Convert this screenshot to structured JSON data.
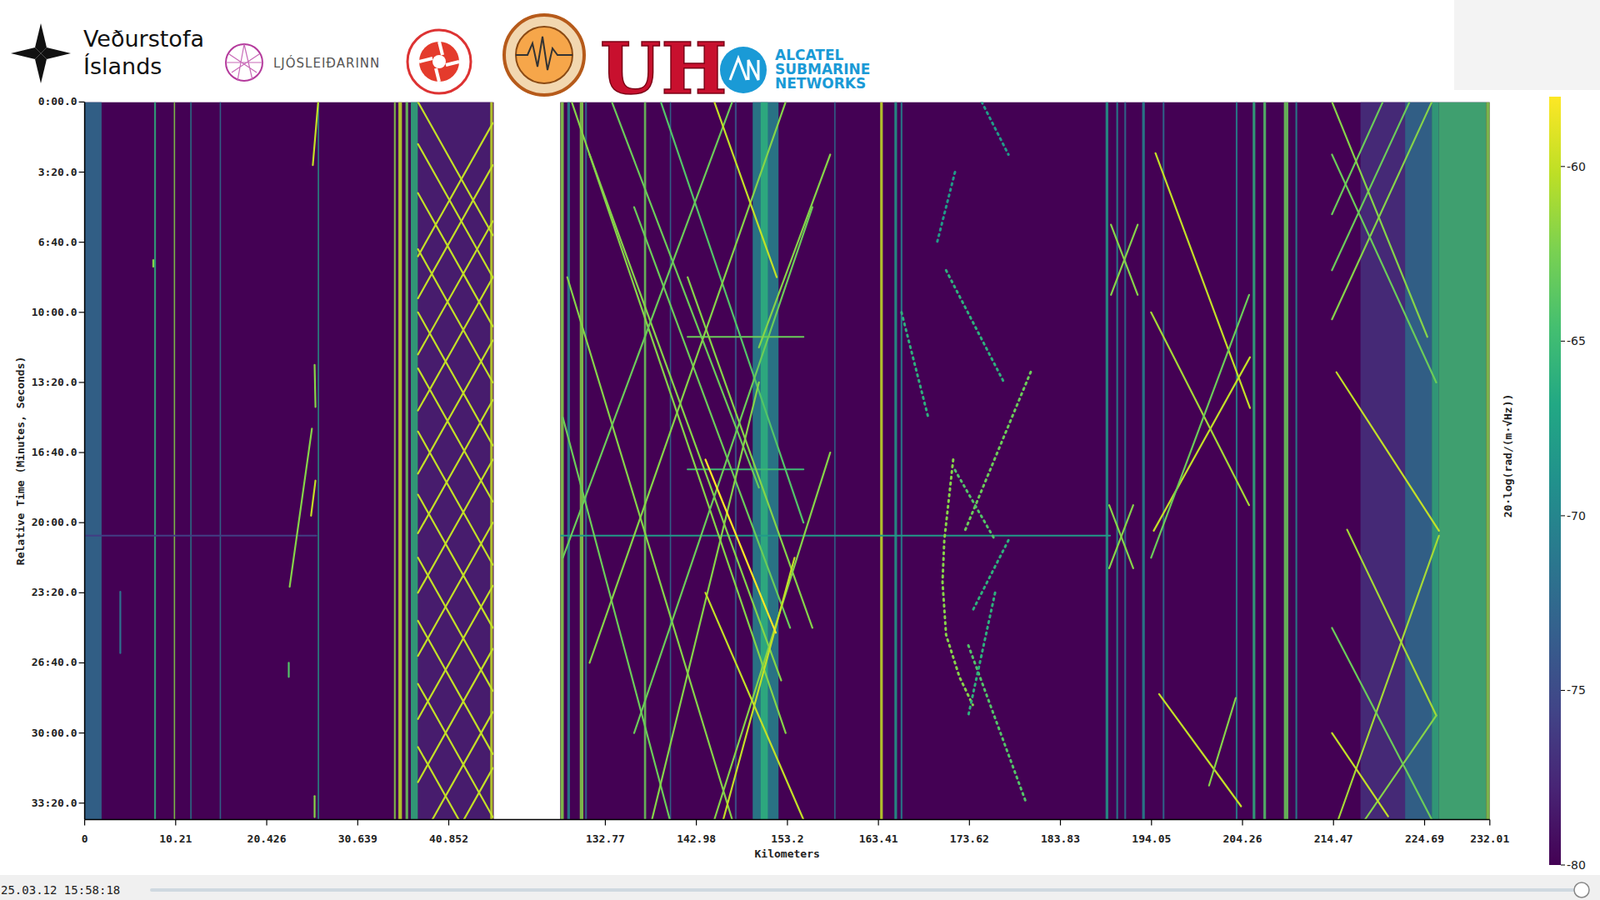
{
  "header": {
    "weather_office": [
      "Veðurstofa",
      "Íslands"
    ],
    "ljosleidarinn": "LJÓSLEIÐARINN",
    "uh": "UH",
    "asn": [
      "ALCATEL",
      "SUBMARINE",
      "NETWORKS"
    ]
  },
  "footer": {
    "timestamp": "25.03.12 15:58:18"
  },
  "chart_data": {
    "type": "waterfall",
    "x_label": "Kilometers",
    "y_label": "Relative Time (Minutes, Seconds)",
    "xlim": [
      0,
      232.01
    ],
    "x_break": [
      45.9,
      127.7
    ],
    "xticks": [
      0,
      10.21,
      20.426,
      30.639,
      40.852,
      132.77,
      142.98,
      153.2,
      163.41,
      173.62,
      183.83,
      194.05,
      204.26,
      214.47,
      224.69,
      232.01
    ],
    "ylim": [
      0,
      2047
    ],
    "yticks": [
      {
        "value": 0,
        "label": "0:00.0"
      },
      {
        "value": 200,
        "label": "3:20.0"
      },
      {
        "value": 400,
        "label": "6:40.0"
      },
      {
        "value": 600,
        "label": "10:00.0"
      },
      {
        "value": 800,
        "label": "13:20.0"
      },
      {
        "value": 1000,
        "label": "16:40.0"
      },
      {
        "value": 1200,
        "label": "20:00.0"
      },
      {
        "value": 1400,
        "label": "23:20.0"
      },
      {
        "value": 1600,
        "label": "26:40.0"
      },
      {
        "value": 1800,
        "label": "30:00.0"
      },
      {
        "value": 2000,
        "label": "33:20.0"
      }
    ],
    "colorbar": {
      "label": "20·log(rad/(m·√Hz))",
      "range": [
        -80,
        -58
      ],
      "ticks": [
        -60,
        -65,
        -70,
        -75,
        -80
      ]
    },
    "bands": [
      {
        "x0": 0,
        "x1": 1.9,
        "level": -72
      },
      {
        "x0": 7.8,
        "x1": 8.0,
        "level": -66
      },
      {
        "x0": 10.0,
        "x1": 10.15,
        "level": -62
      },
      {
        "x0": 11.85,
        "x1": 11.97,
        "level": -70
      },
      {
        "x0": 15.15,
        "x1": 15.3,
        "level": -72
      },
      {
        "x0": 26.15,
        "x1": 26.3,
        "level": -68
      },
      {
        "x0": 34.7,
        "x1": 34.9,
        "level": -62
      },
      {
        "x0": 35.2,
        "x1": 35.6,
        "level": -60
      },
      {
        "x0": 36.0,
        "x1": 36.3,
        "level": -63
      },
      {
        "x0": 36.6,
        "x1": 37.4,
        "level": -66
      },
      {
        "x0": 37.4,
        "x1": 45.5,
        "level": -78
      },
      {
        "x0": 45.5,
        "x1": 45.8,
        "level": -60
      },
      {
        "x0": 127.73,
        "x1": 128.1,
        "level": -62
      },
      {
        "x0": 128.5,
        "x1": 128.8,
        "level": -70
      },
      {
        "x0": 129.9,
        "x1": 130.3,
        "level": -62
      },
      {
        "x0": 130.5,
        "x1": 130.7,
        "level": -72
      },
      {
        "x0": 137.1,
        "x1": 137.35,
        "level": -63
      },
      {
        "x0": 140.0,
        "x1": 140.15,
        "level": -72
      },
      {
        "x0": 147.3,
        "x1": 147.5,
        "level": -74
      },
      {
        "x0": 149.3,
        "x1": 152.2,
        "level": -70
      },
      {
        "x0": 150.2,
        "x1": 151.0,
        "level": -66
      },
      {
        "x0": 158.45,
        "x1": 158.6,
        "level": -72
      },
      {
        "x0": 163.6,
        "x1": 163.9,
        "level": -60
      },
      {
        "x0": 165.2,
        "x1": 165.5,
        "level": -68
      },
      {
        "x0": 165.9,
        "x1": 166.1,
        "level": -70
      },
      {
        "x0": 188.9,
        "x1": 189.2,
        "level": -68
      },
      {
        "x0": 190.1,
        "x1": 190.3,
        "level": -70
      },
      {
        "x0": 191.0,
        "x1": 191.2,
        "level": -72
      },
      {
        "x0": 193.0,
        "x1": 193.3,
        "level": -70
      },
      {
        "x0": 195.3,
        "x1": 195.5,
        "level": -72
      },
      {
        "x0": 203.5,
        "x1": 203.7,
        "level": -70
      },
      {
        "x0": 205.4,
        "x1": 205.7,
        "level": -66
      },
      {
        "x0": 206.6,
        "x1": 206.9,
        "level": -64
      },
      {
        "x0": 208.9,
        "x1": 209.4,
        "level": -63
      },
      {
        "x0": 210.2,
        "x1": 210.4,
        "level": -70
      },
      {
        "x0": 217.5,
        "x1": 222.5,
        "level": -77
      },
      {
        "x0": 222.5,
        "x1": 225.5,
        "level": -72
      },
      {
        "x0": 225.5,
        "x1": 226.3,
        "level": -66
      },
      {
        "x0": 226.3,
        "x1": 231.6,
        "level": -65
      },
      {
        "x0": 231.6,
        "x1": 232.01,
        "level": -62
      }
    ],
    "tracks": [
      {
        "km": [
          0,
          26.0
        ],
        "t": [
          1237,
          1237
        ],
        "level": -76
      },
      {
        "km": [
          127.73,
          189.4
        ],
        "t": [
          1237,
          1237
        ],
        "level": -68
      },
      {
        "km": [
          142.0,
          155.0
        ],
        "t": [
          670,
          670
        ],
        "level": -63
      },
      {
        "km": [
          142.0,
          155.0
        ],
        "t": [
          1048,
          1048
        ],
        "level": -65
      },
      {
        "km": [
          26.2,
          25.6
        ],
        "t": [
          0,
          180
        ],
        "level": -60
      },
      {
        "km": [
          25.8,
          25.9
        ],
        "t": [
          750,
          870
        ],
        "level": -62
      },
      {
        "km": [
          25.5,
          23.0
        ],
        "t": [
          932,
          1383
        ],
        "level": -62
      },
      {
        "km": [
          25.9,
          25.4
        ],
        "t": [
          1080,
          1180
        ],
        "level": -60
      },
      {
        "km": [
          22.9,
          22.9
        ],
        "t": [
          1600,
          1640
        ],
        "level": -64
      },
      {
        "km": [
          25.8,
          25.8
        ],
        "t": [
          1980,
          2040
        ],
        "level": -62
      },
      {
        "km": [
          4.0,
          4.0
        ],
        "t": [
          1397,
          1572
        ],
        "level": -72
      },
      {
        "km": [
          7.7,
          7.7
        ],
        "t": [
          451,
          470
        ],
        "level": -62
      },
      {
        "km": [
          37.4,
          45.8
        ],
        "t": [
          0,
          380
        ],
        "level": -60
      },
      {
        "km": [
          37.4,
          45.8
        ],
        "t": [
          120,
          500
        ],
        "level": -60
      },
      {
        "km": [
          37.4,
          45.8
        ],
        "t": [
          260,
          640
        ],
        "level": -60
      },
      {
        "km": [
          37.4,
          45.8
        ],
        "t": [
          420,
          800
        ],
        "level": -60
      },
      {
        "km": [
          37.4,
          45.8
        ],
        "t": [
          600,
          980
        ],
        "level": -60
      },
      {
        "km": [
          37.4,
          45.8
        ],
        "t": [
          760,
          1140
        ],
        "level": -60
      },
      {
        "km": [
          37.4,
          45.8
        ],
        "t": [
          940,
          1320
        ],
        "level": -60
      },
      {
        "km": [
          37.4,
          45.8
        ],
        "t": [
          1120,
          1500
        ],
        "level": -60
      },
      {
        "km": [
          37.4,
          45.8
        ],
        "t": [
          1300,
          1680
        ],
        "level": -60
      },
      {
        "km": [
          37.4,
          45.8
        ],
        "t": [
          1480,
          1860
        ],
        "level": -60
      },
      {
        "km": [
          37.4,
          45.8
        ],
        "t": [
          1660,
          2040
        ],
        "level": -60
      },
      {
        "km": [
          37.4,
          45.8
        ],
        "t": [
          1840,
          2220
        ],
        "level": -60
      },
      {
        "km": [
          45.8,
          37.4
        ],
        "t": [
          60,
          440
        ],
        "level": -60
      },
      {
        "km": [
          45.8,
          37.4
        ],
        "t": [
          180,
          560
        ],
        "level": -60
      },
      {
        "km": [
          45.8,
          37.4
        ],
        "t": [
          340,
          720
        ],
        "level": -60
      },
      {
        "km": [
          45.8,
          37.4
        ],
        "t": [
          500,
          880
        ],
        "level": -60
      },
      {
        "km": [
          45.8,
          37.4
        ],
        "t": [
          680,
          1060
        ],
        "level": -60
      },
      {
        "km": [
          45.8,
          37.4
        ],
        "t": [
          850,
          1230
        ],
        "level": -60
      },
      {
        "km": [
          45.8,
          37.4
        ],
        "t": [
          1020,
          1400
        ],
        "level": -60
      },
      {
        "km": [
          45.8,
          37.4
        ],
        "t": [
          1200,
          1580
        ],
        "level": -60
      },
      {
        "km": [
          45.8,
          37.4
        ],
        "t": [
          1380,
          1760
        ],
        "level": -60
      },
      {
        "km": [
          45.8,
          37.4
        ],
        "t": [
          1560,
          1940
        ],
        "level": -60
      },
      {
        "km": [
          45.8,
          37.4
        ],
        "t": [
          1740,
          2120
        ],
        "level": -60
      },
      {
        "km": [
          45.8,
          37.4
        ],
        "t": [
          1900,
          2280
        ],
        "level": -60
      },
      {
        "km": [
          129.0,
          153.0
        ],
        "t": [
          0,
          1800
        ],
        "level": -62
      },
      {
        "km": [
          131.0,
          152.5
        ],
        "t": [
          150,
          1650
        ],
        "level": -62
      },
      {
        "km": [
          133.5,
          150.0
        ],
        "t": [
          0,
          1100
        ],
        "level": -63
      },
      {
        "km": [
          128.5,
          147.0
        ],
        "t": [
          500,
          2047
        ],
        "level": -62
      },
      {
        "km": [
          136.0,
          153.5
        ],
        "t": [
          300,
          1500
        ],
        "level": -63
      },
      {
        "km": [
          139.0,
          155.0
        ],
        "t": [
          0,
          1200
        ],
        "level": -64
      },
      {
        "km": [
          128.0,
          140.0
        ],
        "t": [
          900,
          2047
        ],
        "level": -63
      },
      {
        "km": [
          142.0,
          156.0
        ],
        "t": [
          500,
          1500
        ],
        "level": -62
      },
      {
        "km": [
          153.0,
          131.0
        ],
        "t": [
          0,
          1600
        ],
        "level": -62
      },
      {
        "km": [
          156.0,
          136.0
        ],
        "t": [
          300,
          1800
        ],
        "level": -63
      },
      {
        "km": [
          150.0,
          138.0
        ],
        "t": [
          800,
          2047
        ],
        "level": -62
      },
      {
        "km": [
          158.0,
          145.0
        ],
        "t": [
          1000,
          2047
        ],
        "level": -62
      },
      {
        "km": [
          147.0,
          128.0
        ],
        "t": [
          0,
          1300
        ],
        "level": -63
      },
      {
        "km": [
          154.0,
          146.0
        ],
        "t": [
          1300,
          2047
        ],
        "level": -60
      },
      {
        "km": [
          144.0,
          155.0
        ],
        "t": [
          1400,
          2047
        ],
        "level": -60
      },
      {
        "km": [
          145.0,
          152.0
        ],
        "t": [
          0,
          500
        ],
        "level": -60
      },
      {
        "km": [
          158.0,
          150.0
        ],
        "t": [
          150,
          700
        ],
        "level": -62
      },
      {
        "km": [
          144.0,
          151.9
        ],
        "t": [
          1020,
          1514
        ],
        "level": -58
      },
      {
        "km": [
          171.8,
          170.8,
          170.6,
          171.0,
          172.5,
          174.0
        ],
        "t": [
          1020,
          1250,
          1370,
          1520,
          1640,
          1720
        ],
        "level": -62,
        "line_style": "dotted"
      },
      {
        "km": [
          171.0,
          177.5
        ],
        "t": [
          480,
          800
        ],
        "level": -66,
        "line_style": "dotted"
      },
      {
        "km": [
          180.5,
          173.0
        ],
        "t": [
          770,
          1230
        ],
        "level": -63,
        "line_style": "dotted"
      },
      {
        "km": [
          172.0,
          176.5
        ],
        "t": [
          1050,
          1250
        ],
        "level": -64,
        "line_style": "dotted"
      },
      {
        "km": [
          178.0,
          174.0
        ],
        "t": [
          1250,
          1450
        ],
        "level": -66,
        "line_style": "dotted"
      },
      {
        "km": [
          173.5,
          180.0
        ],
        "t": [
          1550,
          2000
        ],
        "level": -64,
        "line_style": "dotted"
      },
      {
        "km": [
          166.0,
          169.0
        ],
        "t": [
          600,
          900
        ],
        "level": -66,
        "line_style": "dotted"
      },
      {
        "km": [
          175.0,
          178.0
        ],
        "t": [
          0,
          150
        ],
        "level": -68,
        "line_style": "dotted"
      },
      {
        "km": [
          172.0,
          170.0
        ],
        "t": [
          200,
          400
        ],
        "level": -68,
        "line_style": "dotted"
      },
      {
        "km": [
          176.5,
          173.5
        ],
        "t": [
          1400,
          1750
        ],
        "level": -66,
        "line_style": "dotted"
      },
      {
        "km": [
          189.5,
          192.5
        ],
        "t": [
          350,
          550
        ],
        "level": -62
      },
      {
        "km": [
          192.5,
          189.5
        ],
        "t": [
          350,
          550
        ],
        "level": -62
      },
      {
        "km": [
          189.3,
          192.0
        ],
        "t": [
          1150,
          1330
        ],
        "level": -62
      },
      {
        "km": [
          192.0,
          189.3
        ],
        "t": [
          1150,
          1330
        ],
        "level": -62
      },
      {
        "km": [
          194.5,
          205.1
        ],
        "t": [
          146,
          873
        ],
        "level": -60
      },
      {
        "km": [
          205.1,
          194.3
        ],
        "t": [
          728,
          1223
        ],
        "level": -60
      },
      {
        "km": [
          194.0,
          205.0
        ],
        "t": [
          600,
          1150
        ],
        "level": -61
      },
      {
        "km": [
          205.0,
          194.0
        ],
        "t": [
          550,
          1300
        ],
        "level": -63
      },
      {
        "km": [
          194.9,
          204.1
        ],
        "t": [
          1689,
          2009
        ],
        "level": -60
      },
      {
        "km": [
          203.5,
          200.5
        ],
        "t": [
          1700,
          1950
        ],
        "level": -62
      },
      {
        "km": [
          214.8,
          226.3
        ],
        "t": [
          771,
          1223
        ],
        "level": -60
      },
      {
        "km": [
          226.3,
          215.0
        ],
        "t": [
          1237,
          2047
        ],
        "level": -61
      },
      {
        "km": [
          225.5,
          214.3
        ],
        "t": [
          0,
          620
        ],
        "level": -62
      },
      {
        "km": [
          223.0,
          214.3
        ],
        "t": [
          0,
          480
        ],
        "level": -63
      },
      {
        "km": [
          220.0,
          214.3
        ],
        "t": [
          0,
          320
        ],
        "level": -63
      },
      {
        "km": [
          214.3,
          225.0
        ],
        "t": [
          0,
          670
        ],
        "level": -62
      },
      {
        "km": [
          214.3,
          226.0
        ],
        "t": [
          150,
          800
        ],
        "level": -63
      },
      {
        "km": [
          216.0,
          226.0
        ],
        "t": [
          1220,
          1750
        ],
        "level": -61
      },
      {
        "km": [
          226.0,
          218.0
        ],
        "t": [
          1750,
          2047
        ],
        "level": -62
      },
      {
        "km": [
          214.3,
          220.6
        ],
        "t": [
          1800,
          2038
        ],
        "level": -60
      },
      {
        "km": [
          214.3,
          225.5
        ],
        "t": [
          1500,
          2047
        ],
        "level": -63
      }
    ]
  }
}
